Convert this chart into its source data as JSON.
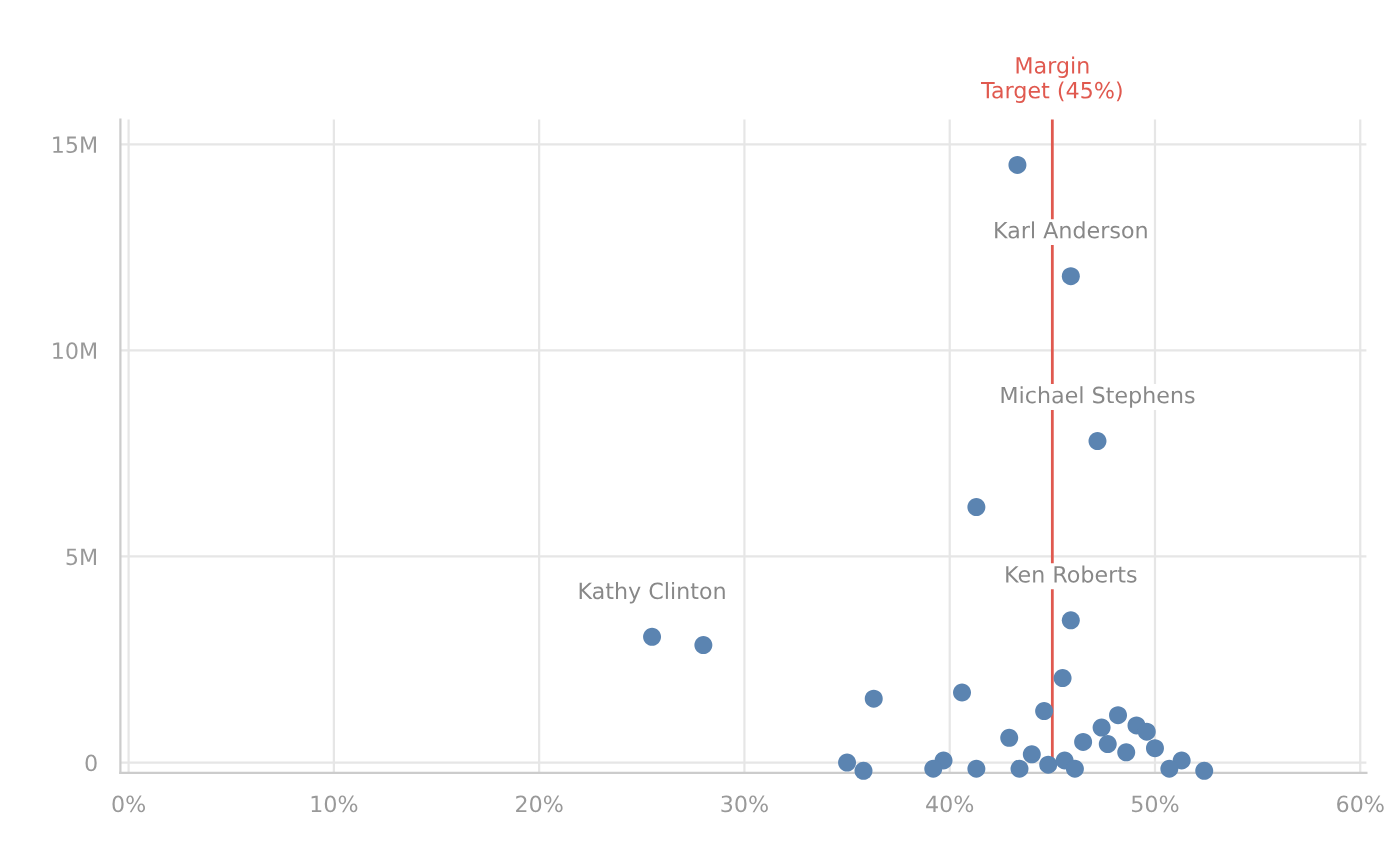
{
  "chart_data": {
    "type": "scatter",
    "x": [
      43.3,
      45.9,
      47.2,
      41.3,
      45.9,
      25.5,
      28.0,
      45.5,
      36.3,
      40.6,
      44.6,
      42.9,
      46.5,
      47.4,
      48.2,
      47.7,
      48.6,
      49.1,
      49.6,
      50.0,
      51.3,
      52.4,
      35.0,
      35.8,
      39.7,
      39.2,
      41.3,
      44.0,
      43.4,
      44.8,
      45.6,
      46.1,
      50.7
    ],
    "series": [
      {
        "color": "#5b84b1",
        "values": [
          14.5,
          11.8,
          7.8,
          6.2,
          3.45,
          3.05,
          2.85,
          2.05,
          1.55,
          1.7,
          1.25,
          0.6,
          0.5,
          0.85,
          1.15,
          0.45,
          0.25,
          0.9,
          0.75,
          0.35,
          0.05,
          -0.2,
          0.0,
          -0.2,
          0.05,
          -0.15,
          -0.15,
          0.2,
          -0.15,
          -0.05,
          0.05,
          -0.15,
          -0.15
        ]
      }
    ],
    "xlim": [
      -0.4,
      60.3
    ],
    "ylim": [
      -0.25,
      15.6
    ],
    "xticks": [
      {
        "value": 0,
        "label": "0%"
      },
      {
        "value": 10,
        "label": "10%"
      },
      {
        "value": 20,
        "label": "20%"
      },
      {
        "value": 30,
        "label": "30%"
      },
      {
        "value": 40,
        "label": "40%"
      },
      {
        "value": 50,
        "label": "50%"
      },
      {
        "value": 60,
        "label": "60%"
      }
    ],
    "yticks": [
      0,
      {
        "value": 5,
        "label": "5M"
      },
      {
        "value": 10,
        "label": "10M"
      },
      {
        "value": 15,
        "label": "15M"
      }
    ],
    "ref_lines": [
      {
        "axis": "x",
        "value": 45,
        "label": "Margin\nTarget (45%)",
        "color": "#e0594f"
      }
    ],
    "annotations": [
      {
        "text": "Karl Anderson",
        "x": 45.9,
        "y": 11.8
      },
      {
        "text": "Michael Stephens",
        "x": 47.2,
        "y": 7.8
      },
      {
        "text": "Ken Roberts",
        "x": 45.9,
        "y": 3.45
      },
      {
        "text": "Kathy Clinton",
        "x": 25.5,
        "y": 3.05
      }
    ],
    "grid": true,
    "marker": "circle"
  }
}
